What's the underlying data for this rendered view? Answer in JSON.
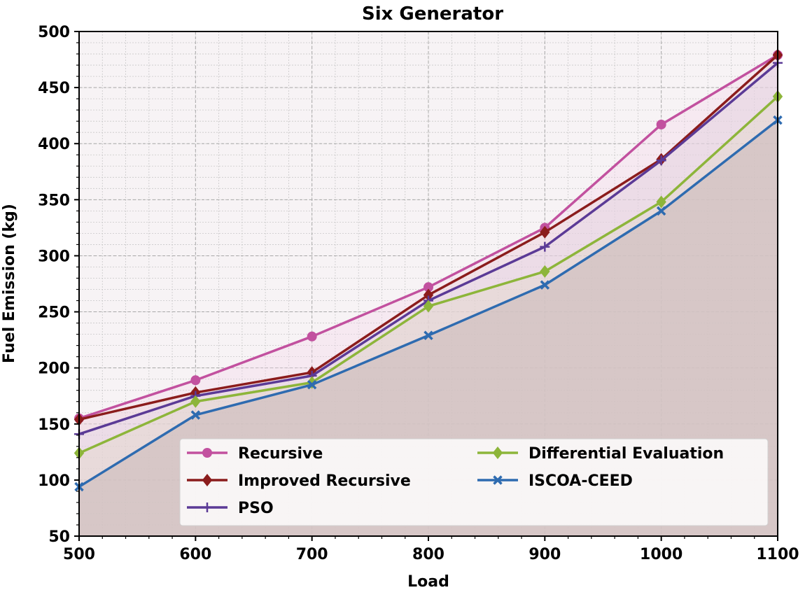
{
  "chart_data": {
    "type": "line",
    "title": "Six Generator",
    "xlabel": "Load",
    "ylabel": "Fuel Emission (kg)",
    "x": [
      500,
      600,
      700,
      800,
      900,
      1000,
      1100
    ],
    "xlim": [
      500,
      1100
    ],
    "ylim": [
      50,
      500
    ],
    "xticks": [
      500,
      600,
      700,
      800,
      900,
      1000,
      1100
    ],
    "yticks": [
      50,
      100,
      150,
      200,
      250,
      300,
      350,
      400,
      450,
      500
    ],
    "grid": true,
    "legend_position": "lower-right",
    "series": [
      {
        "name": "Recursive",
        "values": [
          155,
          189,
          228,
          272,
          325,
          417,
          479
        ],
        "color": "#c2519f",
        "marker": "circle",
        "fill": "#f3d6ea"
      },
      {
        "name": "Improved Recursive",
        "values": [
          154,
          178,
          196,
          265,
          321,
          386,
          479
        ],
        "color": "#8b1c1c",
        "marker": "diamond",
        "fill": "#e8cfd3"
      },
      {
        "name": "PSO",
        "values": [
          141,
          175,
          193,
          260,
          308,
          385,
          472
        ],
        "color": "#5b3a96",
        "marker": "plus",
        "fill": "#ddd0e4"
      },
      {
        "name": "Differential Evaluation",
        "values": [
          124,
          170,
          187,
          255,
          286,
          348,
          442
        ],
        "color": "#8db53a",
        "marker": "diamond",
        "fill": "#e2d8c2"
      },
      {
        "name": "ISCOA-CEED",
        "values": [
          94,
          158,
          185,
          229,
          274,
          340,
          421
        ],
        "color": "#2e6bb0",
        "marker": "x",
        "fill": "#c8b8b8"
      }
    ]
  }
}
